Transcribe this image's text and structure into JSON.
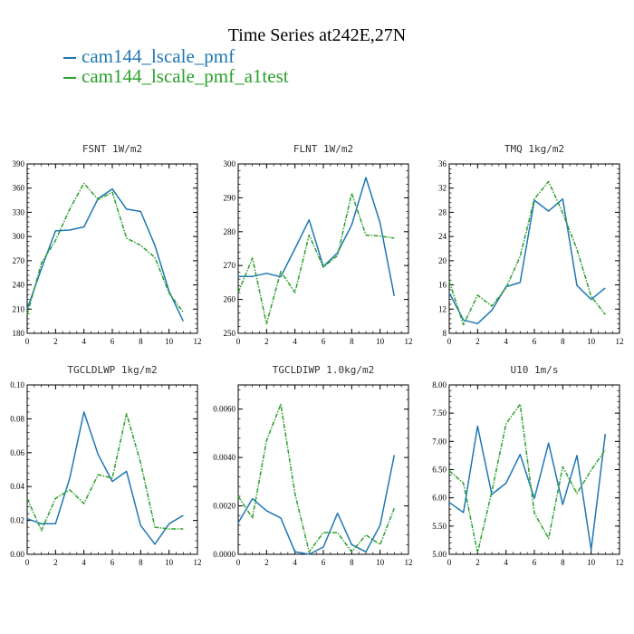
{
  "figure": {
    "title": "Time Series at242E,27N",
    "legend": [
      {
        "label": "cam144_lscale_pmf",
        "color": "#1f77b4"
      },
      {
        "label": "cam144_lscale_pmf_a1test",
        "color": "#2ca02c"
      }
    ]
  },
  "chart_data": [
    {
      "type": "line",
      "title": "FSNT   1W/m2",
      "x": [
        0,
        1,
        2,
        3,
        4,
        5,
        6,
        7,
        8,
        9,
        10,
        11
      ],
      "xlim": [
        0,
        12
      ],
      "xticks": [
        "0",
        "2",
        "4",
        "6",
        "8",
        "10",
        "12"
      ],
      "ylim": [
        180,
        390
      ],
      "yticks": [
        "180",
        "210",
        "240",
        "270",
        "300",
        "330",
        "360",
        "390"
      ],
      "series": [
        {
          "name": "cam144_lscale_pmf",
          "color": "#1f77b4",
          "dashed": false,
          "values": [
            210,
            260,
            307,
            308,
            312,
            347,
            359,
            334,
            331,
            289,
            232,
            195
          ]
        },
        {
          "name": "cam144_lscale_pmf_a1test",
          "color": "#2ca02c",
          "dashed": true,
          "values": [
            203,
            267,
            295,
            334,
            366,
            346,
            355,
            298,
            289,
            274,
            230,
            206
          ]
        }
      ]
    },
    {
      "type": "line",
      "title": "FLNT   1W/m2",
      "x": [
        0,
        1,
        2,
        3,
        4,
        5,
        6,
        7,
        8,
        9,
        10,
        11
      ],
      "xlim": [
        0,
        12
      ],
      "xticks": [
        "0",
        "2",
        "4",
        "6",
        "8",
        "10",
        "12"
      ],
      "ylim": [
        250,
        300
      ],
      "yticks": [
        "250",
        "260",
        "270",
        "280",
        "290",
        "300"
      ],
      "series": [
        {
          "name": "cam144_lscale_pmf",
          "color": "#1f77b4",
          "dashed": false,
          "values": [
            266.8,
            266.8,
            267.7,
            266.7,
            275,
            283.5,
            269.7,
            273.8,
            282,
            296,
            282.5,
            261
          ]
        },
        {
          "name": "cam144_lscale_pmf_a1test",
          "color": "#2ca02c",
          "dashed": true,
          "values": [
            262,
            272.2,
            252.8,
            268.3,
            262,
            279,
            269.5,
            273,
            291.3,
            279,
            278.7,
            278.1
          ]
        }
      ]
    },
    {
      "type": "line",
      "title": "TMQ   1kg/m2",
      "x": [
        0,
        1,
        2,
        3,
        4,
        5,
        6,
        7,
        8,
        9,
        10,
        11
      ],
      "xlim": [
        0,
        12
      ],
      "xticks": [
        "0",
        "2",
        "4",
        "6",
        "8",
        "10",
        "12"
      ],
      "ylim": [
        8,
        36
      ],
      "yticks": [
        "8",
        "12",
        "16",
        "20",
        "24",
        "28",
        "32",
        "36"
      ],
      "series": [
        {
          "name": "cam144_lscale_pmf",
          "color": "#1f77b4",
          "dashed": false,
          "values": [
            14.7,
            10.2,
            9.6,
            11.8,
            15.7,
            16.4,
            30,
            28.2,
            30.2,
            15.9,
            13.6,
            15.5
          ]
        },
        {
          "name": "cam144_lscale_pmf_a1test",
          "color": "#2ca02c",
          "dashed": true,
          "values": [
            16.6,
            9.4,
            14.3,
            12.5,
            15.5,
            20.7,
            30.2,
            33.1,
            27.9,
            21.9,
            14.1,
            11.1
          ]
        }
      ]
    },
    {
      "type": "line",
      "title": "TGCLDLWP   1kg/m2",
      "x": [
        0,
        1,
        2,
        3,
        4,
        5,
        6,
        7,
        8,
        9,
        10,
        11
      ],
      "xlim": [
        0,
        12
      ],
      "xticks": [
        "0",
        "2",
        "4",
        "6",
        "8",
        "10",
        "12"
      ],
      "ylim": [
        0,
        0.1
      ],
      "yticks": [
        "0.00",
        "0.02",
        "0.04",
        "0.06",
        "0.08",
        "0.10"
      ],
      "series": [
        {
          "name": "cam144_lscale_pmf",
          "color": "#1f77b4",
          "dashed": false,
          "values": [
            0.021,
            0.018,
            0.018,
            0.045,
            0.084,
            0.059,
            0.043,
            0.049,
            0.017,
            0.006,
            0.018,
            0.023
          ]
        },
        {
          "name": "cam144_lscale_pmf_a1test",
          "color": "#2ca02c",
          "dashed": true,
          "values": [
            0.033,
            0.014,
            0.033,
            0.038,
            0.03,
            0.047,
            0.045,
            0.083,
            0.054,
            0.016,
            0.015,
            0.015
          ]
        }
      ]
    },
    {
      "type": "line",
      "title": "TGCLDIWP   1.0kg/m2",
      "x": [
        0,
        1,
        2,
        3,
        4,
        5,
        6,
        7,
        8,
        9,
        10,
        11
      ],
      "xlim": [
        0,
        12
      ],
      "xticks": [
        "0",
        "2",
        "4",
        "6",
        "8",
        "10",
        "12"
      ],
      "ylim": [
        0,
        0.007
      ],
      "yticks": [
        "0.0000",
        "0.0020",
        "0.0040",
        "0.0060"
      ],
      "series": [
        {
          "name": "cam144_lscale_pmf",
          "color": "#1f77b4",
          "dashed": false,
          "values": [
            0.0013,
            0.0023,
            0.0018,
            0.0015,
            0.0001,
            0.0,
            0.0003,
            0.0017,
            0.0004,
            0.0001,
            0.0012,
            0.0041
          ]
        },
        {
          "name": "cam144_lscale_pmf_a1test",
          "color": "#2ca02c",
          "dashed": true,
          "values": [
            0.0024,
            0.0015,
            0.0047,
            0.0062,
            0.0025,
            0.0001,
            0.0009,
            0.0009,
            0.0001,
            0.0008,
            0.0004,
            0.0019
          ]
        }
      ]
    },
    {
      "type": "line",
      "title": "U10   1m/s",
      "x": [
        0,
        1,
        2,
        3,
        4,
        5,
        6,
        7,
        8,
        9,
        10,
        11
      ],
      "xlim": [
        0,
        12
      ],
      "xticks": [
        "0",
        "2",
        "4",
        "6",
        "8",
        "10",
        "12"
      ],
      "ylim": [
        5,
        8
      ],
      "yticks": [
        "5.00",
        "5.50",
        "6.00",
        "6.50",
        "7.00",
        "7.50",
        "8.00"
      ],
      "series": [
        {
          "name": "cam144_lscale_pmf",
          "color": "#1f77b4",
          "dashed": false,
          "values": [
            5.92,
            5.74,
            7.27,
            6.06,
            6.26,
            6.77,
            5.99,
            6.97,
            5.88,
            6.75,
            5.08,
            7.13
          ]
        },
        {
          "name": "cam144_lscale_pmf_a1test",
          "color": "#2ca02c",
          "dashed": true,
          "values": [
            6.48,
            6.26,
            5.03,
            6.11,
            7.31,
            7.66,
            5.73,
            5.28,
            6.55,
            6.08,
            6.49,
            6.85
          ]
        }
      ]
    }
  ]
}
